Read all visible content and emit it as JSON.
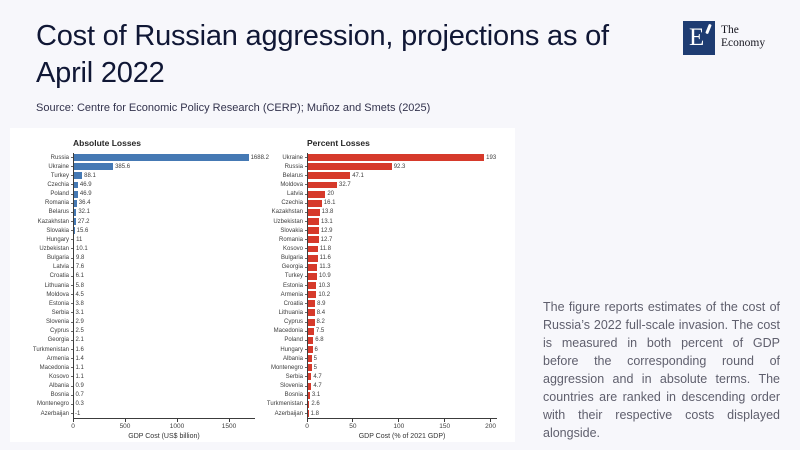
{
  "header": {
    "title": "Cost of Russian aggression, projections as of April 2022",
    "source": "Source: Centre for Economic Policy Research (CERP); Muñoz and Smets (2025)"
  },
  "logo": {
    "letter": "E",
    "name_line1": "The",
    "name_line2": "Economy"
  },
  "note": {
    "text": "The figure reports estimates of the cost of Russia’s 2022 full-scale invasion. The cost is measured in both percent of GDP before the corresponding round of aggression and in absolute terms. The countries are ranked in descending order with their respective costs displayed alongside."
  },
  "colors": {
    "title_navy": "#101735",
    "logo_navy": "#1e3c72",
    "note_gray": "#5f5f6d",
    "bar_blue": "#4579b4",
    "bar_red": "#d63a2b",
    "panel_white": "#ffffff",
    "slide_background": "#f7f7fb"
  },
  "chart_data": [
    {
      "type": "bar",
      "orientation": "horizontal",
      "title": "Absolute Losses",
      "xlabel": "GDP Cost (US$ billion)",
      "xlim": [
        0,
        1750
      ],
      "xticks": [
        0,
        500,
        1000,
        1500
      ],
      "grid": false,
      "legend": "none",
      "bar_color": "#4579b4",
      "categories": [
        "Russia",
        "Ukraine",
        "Turkey",
        "Czechia",
        "Poland",
        "Romania",
        "Belarus",
        "Kazakhstan",
        "Slovakia",
        "Hungary",
        "Uzbekistan",
        "Bulgaria",
        "Latvia",
        "Croatia",
        "Lithuania",
        "Moldova",
        "Estonia",
        "Serbia",
        "Slovenia",
        "Cyprus",
        "Georgia",
        "Turkmenistan",
        "Armenia",
        "Macedonia",
        "Kosovo",
        "Albania",
        "Bosnia",
        "Montenegro",
        "Azerbaijan"
      ],
      "values": [
        1688.2,
        385.6,
        88.1,
        46.9,
        46.9,
        36.4,
        32.1,
        27.2,
        15.6,
        11,
        10.1,
        9.8,
        7.6,
        6.1,
        5.8,
        4.5,
        3.8,
        3.1,
        2.9,
        2.5,
        2.1,
        1.6,
        1.4,
        1.1,
        1.1,
        0.9,
        0.7,
        0.3,
        -1
      ]
    },
    {
      "type": "bar",
      "orientation": "horizontal",
      "title": "Percent Losses",
      "xlabel": "GDP Cost (% of 2021 GDP)",
      "xlim": [
        0,
        207
      ],
      "xticks": [
        0,
        50,
        100,
        150,
        200
      ],
      "grid": false,
      "legend": "none",
      "bar_color": "#d63a2b",
      "categories": [
        "Ukraine",
        "Russia",
        "Belarus",
        "Moldova",
        "Latvia",
        "Czechia",
        "Kazakhstan",
        "Uzbekistan",
        "Slovakia",
        "Romania",
        "Kosovo",
        "Bulgaria",
        "Georgia",
        "Turkey",
        "Estonia",
        "Armenia",
        "Croatia",
        "Lithuania",
        "Cyprus",
        "Macedonia",
        "Poland",
        "Hungary",
        "Albania",
        "Montenegro",
        "Serbia",
        "Slovenia",
        "Bosnia",
        "Turkmenistan",
        "Azerbaijan"
      ],
      "values": [
        193,
        92.3,
        47.1,
        32.7,
        20,
        16.1,
        13.8,
        13.1,
        12.9,
        12.7,
        11.8,
        11.6,
        11.3,
        10.9,
        10.3,
        10.2,
        8.9,
        8.4,
        8.2,
        7.5,
        6.8,
        6,
        5,
        5,
        4.7,
        4.7,
        3.1,
        2.6,
        1.8
      ]
    }
  ]
}
